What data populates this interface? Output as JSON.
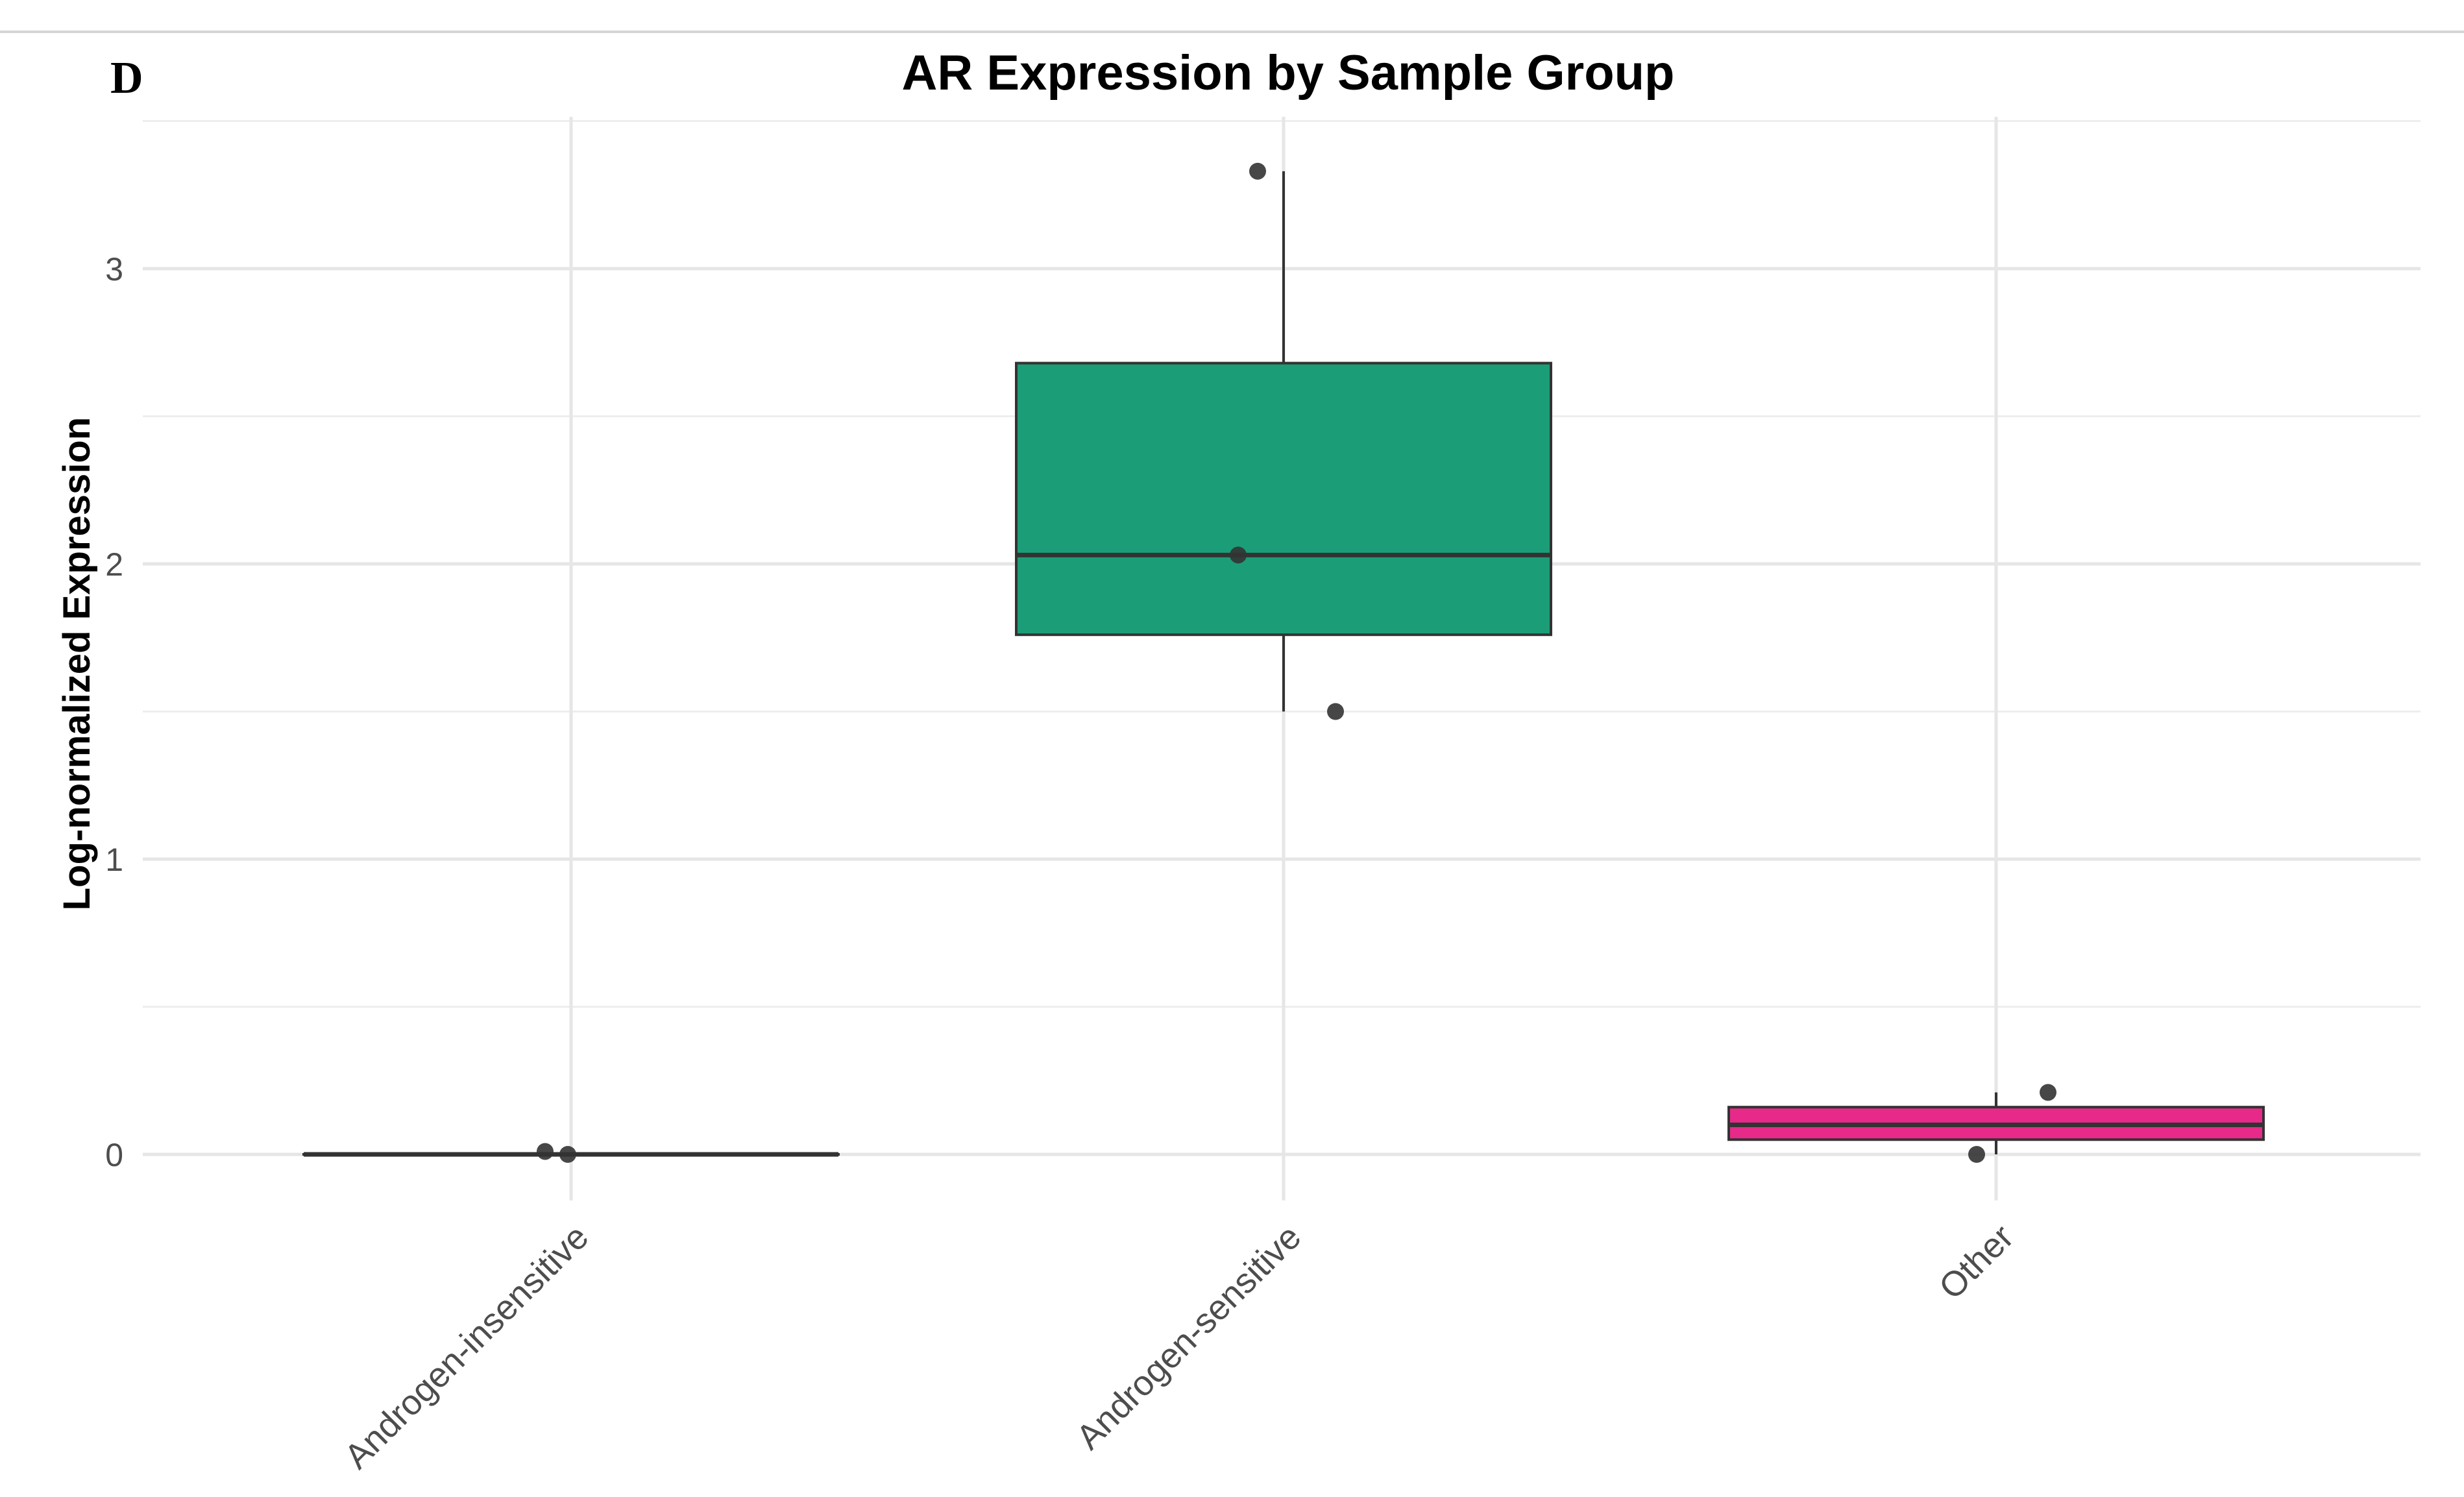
{
  "panel_label": "D",
  "chart_data": {
    "type": "box",
    "title": "AR Expression by Sample Group",
    "xlabel": "",
    "ylabel": "Log-normalized Expression",
    "ylim": [
      -0.15,
      3.52
    ],
    "yticks": [
      0,
      1,
      2,
      3
    ],
    "grid": true,
    "legend": "none",
    "categories": [
      "Androgen-insensitive",
      "Androgen-sensitive",
      "Other"
    ],
    "boxes": [
      {
        "category": "Androgen-insensitive",
        "min": 0.0,
        "q1": 0.0,
        "median": 0.0,
        "q3": 0.0,
        "max": 0.0,
        "color": "#1b9e77"
      },
      {
        "category": "Androgen-sensitive",
        "min": 1.5,
        "q1": 1.76,
        "median": 2.03,
        "q3": 2.68,
        "max": 3.33,
        "color": "#1b9e77"
      },
      {
        "category": "Other",
        "min": 0.0,
        "q1": 0.05,
        "median": 0.1,
        "q3": 0.16,
        "max": 0.21,
        "color": "#e7298a"
      }
    ],
    "points": [
      {
        "category": "Androgen-insensitive",
        "y": 0.01
      },
      {
        "category": "Androgen-insensitive",
        "y": 0.0
      },
      {
        "category": "Androgen-sensitive",
        "y": 3.33
      },
      {
        "category": "Androgen-sensitive",
        "y": 2.03
      },
      {
        "category": "Androgen-sensitive",
        "y": 1.5
      },
      {
        "category": "Other",
        "y": 0.21
      },
      {
        "category": "Other",
        "y": 0.0
      }
    ]
  }
}
